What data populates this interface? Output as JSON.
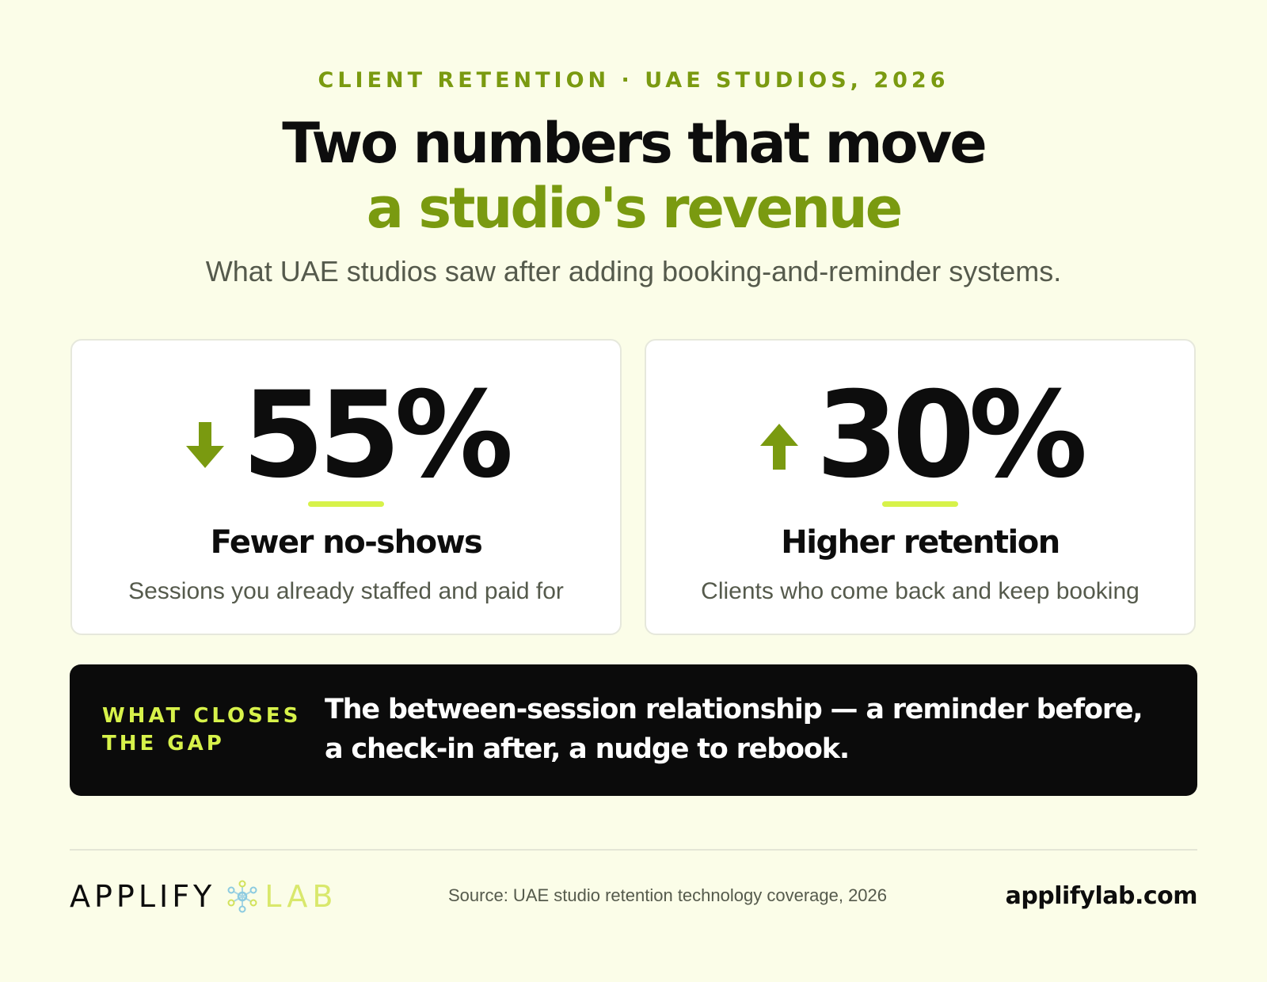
{
  "header": {
    "eyebrow": "CLIENT RETENTION · UAE STUDIOS, 2026",
    "title_line1": "Two numbers that move",
    "title_line2": "a studio's revenue",
    "subtitle": "What UAE studios saw after adding booking-and-reminder systems."
  },
  "stats": [
    {
      "value": "55%",
      "direction_icon": "arrow-down-icon",
      "label": "Fewer no-shows",
      "description": "Sessions you already staffed and paid for"
    },
    {
      "value": "30%",
      "direction_icon": "arrow-up-icon",
      "label": "Higher retention",
      "description": "Clients who come back and keep booking"
    }
  ],
  "banner": {
    "label": "WHAT CLOSES THE GAP",
    "text": "The between-session relationship — a reminder before, a check-in after, a nudge to rebook."
  },
  "footer": {
    "brand_part1": "APPLIFY",
    "brand_part2": "LAB",
    "brand_icon": "molecule-logo-icon",
    "source": "Source: UAE studio retention technology coverage, 2026",
    "website": "applifylab.com"
  },
  "colors": {
    "background": "#fbfde8",
    "accent_green": "#7a9a10",
    "accent_lime": "#d7f24a",
    "dark": "#0b0b0b",
    "muted_text": "#555a4c"
  }
}
